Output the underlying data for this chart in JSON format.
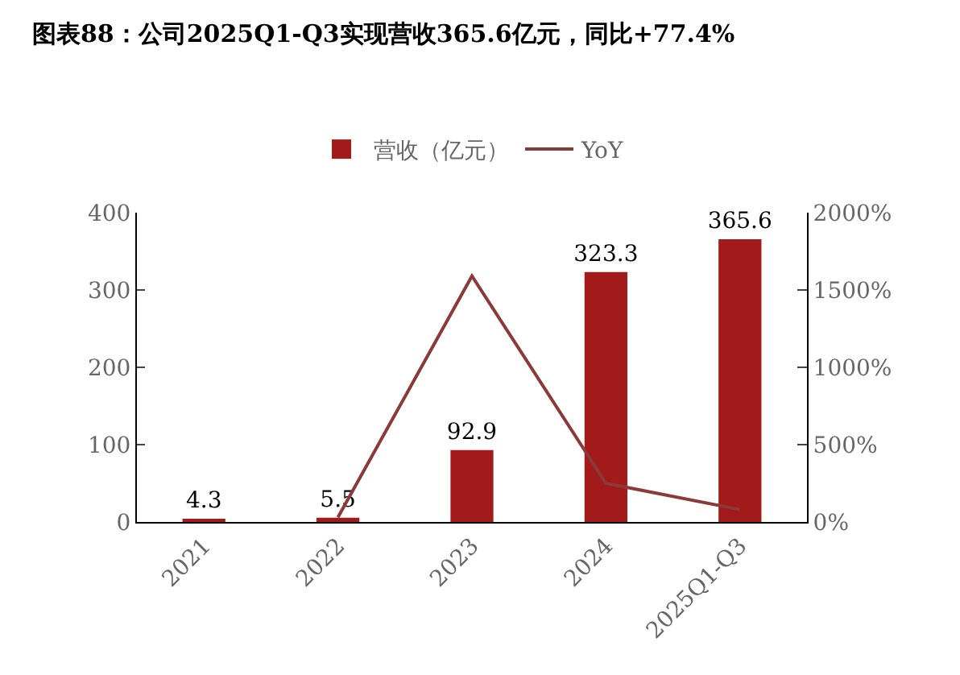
{
  "chart_data": {
    "type": "bar",
    "title": "图表88：公司2025Q1-Q3实现营收365.6亿元，同比+77.4%",
    "categories": [
      "2021",
      "2022",
      "2023",
      "2024",
      "2025Q1-Q3"
    ],
    "series": [
      {
        "name": "营收（亿元）",
        "color": "#a31a1a",
        "values": [
          4.3,
          5.5,
          92.9,
          323.3,
          365.6
        ],
        "data_labels": true
      },
      {
        "name": "YoY",
        "type": "line",
        "axis": "y2",
        "color": "#8b3a3a",
        "values": [
          null,
          30,
          1590,
          250,
          80
        ],
        "marker": "none"
      }
    ],
    "ylim": [
      0,
      400
    ],
    "yticks": [
      0,
      100,
      200,
      300,
      400
    ],
    "y2lim": [
      0,
      2000
    ],
    "y2ticks": [
      {
        "value": 0,
        "label": "0%"
      },
      {
        "value": 500,
        "label": "500%"
      },
      {
        "value": 1000,
        "label": "1000%"
      },
      {
        "value": 1500,
        "label": "1500%"
      },
      {
        "value": 2000,
        "label": "2000%"
      }
    ],
    "legend": "top",
    "grid": false
  }
}
